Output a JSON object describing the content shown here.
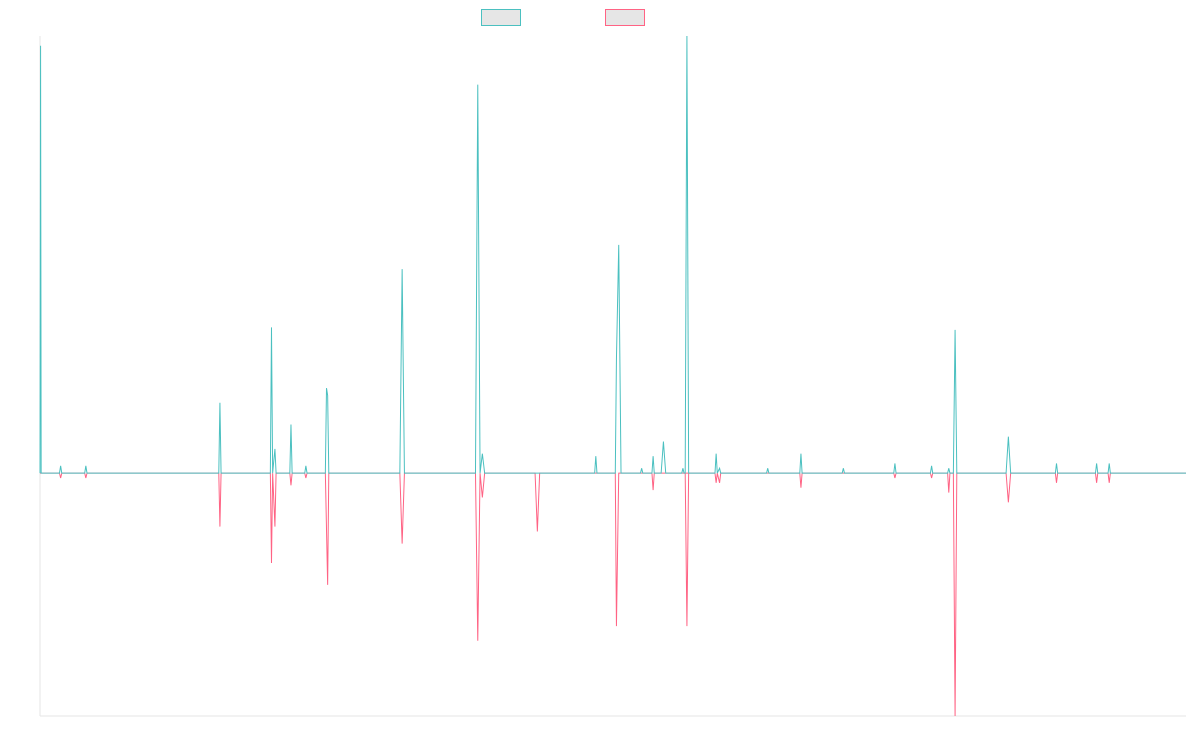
{
  "chart_data": {
    "type": "line",
    "title": "",
    "xlabel": "",
    "ylabel": "",
    "grid": false,
    "legend_position": "top-center",
    "xlim": [
      0,
      1000
    ],
    "ylim": [
      -1.0,
      1.8
    ],
    "series": [
      {
        "color": "#4bc0c0",
        "legend_fill": "#e6e6e6",
        "points": [
          [
            0,
            0
          ],
          [
            0.5,
            1.76
          ],
          [
            1,
            0
          ],
          [
            17,
            0
          ],
          [
            18,
            0.03
          ],
          [
            19,
            0
          ],
          [
            39,
            0
          ],
          [
            40,
            0.03
          ],
          [
            41,
            0
          ],
          [
            156,
            0
          ],
          [
            157,
            0.29
          ],
          [
            158,
            0
          ],
          [
            201,
            0
          ],
          [
            202,
            0.6
          ],
          [
            203,
            0
          ],
          [
            205,
            0.1
          ],
          [
            206,
            0
          ],
          [
            218,
            0
          ],
          [
            219,
            0.2
          ],
          [
            220,
            0
          ],
          [
            231,
            0
          ],
          [
            232,
            0.03
          ],
          [
            233,
            0
          ],
          [
            249,
            0
          ],
          [
            250,
            0.35
          ],
          [
            251,
            0.32
          ],
          [
            252,
            0
          ],
          [
            314,
            0
          ],
          [
            316,
            0.84
          ],
          [
            318,
            0
          ],
          [
            380,
            0
          ],
          [
            382,
            1.6
          ],
          [
            384,
            0
          ],
          [
            386,
            0.08
          ],
          [
            388,
            0
          ],
          [
            432,
            0
          ],
          [
            434,
            0
          ],
          [
            436,
            0
          ],
          [
            484,
            0
          ],
          [
            485,
            0.07
          ],
          [
            486,
            0
          ],
          [
            502,
            0
          ],
          [
            503,
            0.47
          ],
          [
            505,
            0.94
          ],
          [
            507,
            0
          ],
          [
            524,
            0
          ],
          [
            525,
            0.02
          ],
          [
            526,
            0
          ],
          [
            534,
            0
          ],
          [
            535,
            0.07
          ],
          [
            536,
            0
          ],
          [
            542,
            0
          ],
          [
            544,
            0.13
          ],
          [
            546,
            0
          ],
          [
            560,
            0
          ],
          [
            561,
            0.02
          ],
          [
            562,
            0
          ],
          [
            563,
            0
          ],
          [
            564.5,
            1.8
          ],
          [
            566,
            0
          ],
          [
            589,
            0
          ],
          [
            590,
            0.08
          ],
          [
            591,
            0
          ],
          [
            593,
            0.02
          ],
          [
            594,
            0
          ],
          [
            634,
            0
          ],
          [
            635,
            0.02
          ],
          [
            636,
            0
          ],
          [
            663,
            0
          ],
          [
            664,
            0.08
          ],
          [
            665,
            0
          ],
          [
            700,
            0
          ],
          [
            701,
            0.02
          ],
          [
            702,
            0
          ],
          [
            745,
            0
          ],
          [
            746,
            0.04
          ],
          [
            747,
            0
          ],
          [
            777,
            0
          ],
          [
            778,
            0.03
          ],
          [
            779,
            0
          ],
          [
            792,
            0
          ],
          [
            793,
            0.02
          ],
          [
            794,
            0
          ],
          [
            797,
            0
          ],
          [
            798.5,
            0.59
          ],
          [
            800,
            0
          ],
          [
            843,
            0
          ],
          [
            845,
            0.15
          ],
          [
            847,
            0
          ],
          [
            886,
            0
          ],
          [
            887,
            0.04
          ],
          [
            888,
            0
          ],
          [
            921,
            0
          ],
          [
            922,
            0.04
          ],
          [
            923,
            0
          ],
          [
            932,
            0
          ],
          [
            933,
            0.04
          ],
          [
            934,
            0
          ],
          [
            1000,
            0
          ]
        ]
      },
      {
        "color": "#ff6384",
        "legend_fill": "#e6e6e6",
        "points": [
          [
            0,
            0
          ],
          [
            0.5,
            0
          ],
          [
            1,
            0
          ],
          [
            17,
            0
          ],
          [
            18,
            -0.02
          ],
          [
            19,
            0
          ],
          [
            39,
            0
          ],
          [
            40,
            -0.02
          ],
          [
            41,
            0
          ],
          [
            156,
            0
          ],
          [
            157,
            -0.22
          ],
          [
            158,
            0
          ],
          [
            201,
            0
          ],
          [
            202,
            -0.37
          ],
          [
            203,
            0
          ],
          [
            205,
            -0.22
          ],
          [
            206,
            0
          ],
          [
            218,
            0
          ],
          [
            219,
            -0.05
          ],
          [
            220,
            0
          ],
          [
            231,
            0
          ],
          [
            232,
            -0.02
          ],
          [
            233,
            0
          ],
          [
            249,
            0
          ],
          [
            251,
            -0.46
          ],
          [
            252,
            0
          ],
          [
            314,
            0
          ],
          [
            316,
            -0.29
          ],
          [
            318,
            0
          ],
          [
            380,
            0
          ],
          [
            382,
            -0.69
          ],
          [
            384,
            0
          ],
          [
            386,
            -0.1
          ],
          [
            388,
            0
          ],
          [
            432,
            0
          ],
          [
            434,
            -0.24
          ],
          [
            436,
            0
          ],
          [
            502,
            0
          ],
          [
            503,
            -0.63
          ],
          [
            505,
            0
          ],
          [
            507,
            0
          ],
          [
            534,
            0
          ],
          [
            535,
            -0.07
          ],
          [
            536,
            0
          ],
          [
            563,
            0
          ],
          [
            564.5,
            -0.63
          ],
          [
            566,
            0
          ],
          [
            562,
            0
          ],
          [
            589,
            0
          ],
          [
            590,
            -0.04
          ],
          [
            591,
            0
          ],
          [
            593,
            -0.04
          ],
          [
            594,
            0
          ],
          [
            663,
            0
          ],
          [
            664,
            -0.06
          ],
          [
            665,
            0
          ],
          [
            745,
            0
          ],
          [
            746,
            -0.02
          ],
          [
            747,
            0
          ],
          [
            777,
            0
          ],
          [
            778,
            -0.02
          ],
          [
            779,
            0
          ],
          [
            792,
            0
          ],
          [
            793,
            -0.08
          ],
          [
            794,
            0
          ],
          [
            797,
            0
          ],
          [
            798.5,
            -1.0
          ],
          [
            800,
            0
          ],
          [
            843,
            0
          ],
          [
            845,
            -0.12
          ],
          [
            847,
            0
          ],
          [
            886,
            0
          ],
          [
            887,
            -0.04
          ],
          [
            888,
            0
          ],
          [
            921,
            0
          ],
          [
            922,
            -0.04
          ],
          [
            923,
            0
          ],
          [
            932,
            0
          ],
          [
            933,
            -0.04
          ],
          [
            934,
            0
          ],
          [
            1000,
            0
          ]
        ]
      }
    ]
  }
}
